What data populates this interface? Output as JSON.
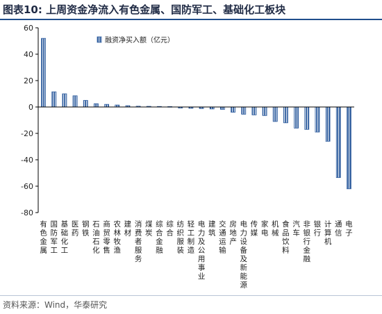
{
  "header": {
    "title": "图表10:  上周资金净流入有色金属、国防军工、基础化工板块"
  },
  "footer": {
    "source": "资料来源：Wind，华泰研究"
  },
  "colors": {
    "bar_fill": "#2f5d9e",
    "bar_stripe": "#ffffff",
    "axis": "#000000"
  },
  "chart_data": {
    "type": "bar",
    "title": "",
    "xlabel": "",
    "ylabel": "",
    "ylim": [
      -80,
      60
    ],
    "yticks": [
      -80,
      -60,
      -40,
      -20,
      0,
      20,
      40,
      60
    ],
    "legend": {
      "label": "融资净买入额（亿元）",
      "placement": "top-center"
    },
    "grid": false,
    "categories": [
      "有色金属",
      "国防军工",
      "基础化工",
      "医药",
      "钢铁",
      "石油石化",
      "商贸零售",
      "农林牧渔",
      "建材",
      "消费者服务",
      "煤炭",
      "综合金融",
      "综合",
      "纺织服装",
      "轻工制造",
      "电力及公用事业",
      "建筑",
      "交通运输",
      "房地产",
      "电力设备及新能源",
      "传媒",
      "家电",
      "机械",
      "食品饮料",
      "汽车",
      "非银行金融",
      "银行",
      "计算机",
      "通信",
      "电子"
    ],
    "series": [
      {
        "name": "融资净买入额（亿元）",
        "values": [
          52,
          11.5,
          10,
          8.5,
          5,
          2.5,
          2,
          1.5,
          1,
          0.6,
          0.5,
          0.4,
          0.3,
          -0.8,
          -1,
          -1.2,
          -1.5,
          -1.8,
          -4,
          -5.5,
          -6,
          -6.5,
          -11,
          -12,
          -16,
          -17,
          -19,
          -26,
          -53.5,
          -62
        ]
      }
    ]
  }
}
